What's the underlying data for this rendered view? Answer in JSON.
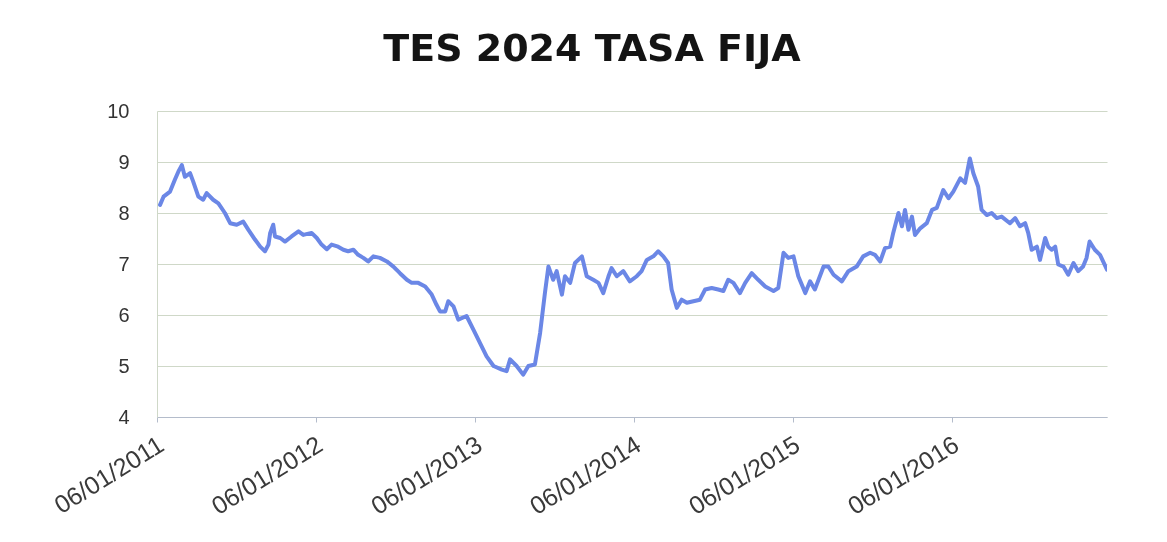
{
  "chart_data": {
    "type": "line",
    "title": "TES 2024 TASA FIJA",
    "x": [
      "2011-01-13",
      "2011-01-21",
      "2011-02-05",
      "2011-02-16",
      "2011-02-24",
      "2011-03-04",
      "2011-03-11",
      "2011-03-23",
      "2011-03-30",
      "2011-04-11",
      "2011-04-22",
      "2011-04-30",
      "2011-05-15",
      "2011-05-27",
      "2011-06-11",
      "2011-06-23",
      "2011-07-08",
      "2011-07-23",
      "2011-08-04",
      "2011-08-19",
      "2011-08-31",
      "2011-09-11",
      "2011-09-19",
      "2011-09-23",
      "2011-09-30",
      "2011-10-04",
      "2011-10-16",
      "2011-10-27",
      "2011-11-11",
      "2011-11-27",
      "2011-12-08",
      "2011-12-27",
      "2012-01-08",
      "2012-01-19",
      "2012-01-31",
      "2012-02-11",
      "2012-02-26",
      "2012-03-09",
      "2012-03-20",
      "2012-04-01",
      "2012-04-12",
      "2012-04-24",
      "2012-05-05",
      "2012-05-17",
      "2012-06-01",
      "2012-06-17",
      "2012-07-02",
      "2012-07-17",
      "2012-08-02",
      "2012-08-13",
      "2012-08-28",
      "2012-09-13",
      "2012-09-28",
      "2012-10-09",
      "2012-10-17",
      "2012-10-29",
      "2012-11-05",
      "2012-11-17",
      "2012-11-28",
      "2012-12-17",
      "2013-01-02",
      "2013-01-17",
      "2013-02-01",
      "2013-02-17",
      "2013-03-08",
      "2013-03-19",
      "2013-03-27",
      "2013-04-11",
      "2013-04-26",
      "2013-05-08",
      "2013-05-23",
      "2013-06-04",
      "2013-06-15",
      "2013-06-23",
      "2013-07-04",
      "2013-07-12",
      "2013-07-24",
      "2013-07-31",
      "2013-08-12",
      "2013-08-23",
      "2013-09-08",
      "2013-09-19",
      "2013-10-04",
      "2013-10-16",
      "2013-10-27",
      "2013-11-08",
      "2013-11-15",
      "2013-11-27",
      "2013-12-12",
      "2013-12-27",
      "2014-01-12",
      "2014-01-23",
      "2014-02-04",
      "2014-02-19",
      "2014-03-02",
      "2014-03-14",
      "2014-03-25",
      "2014-04-02",
      "2014-04-14",
      "2014-04-25",
      "2014-05-07",
      "2014-05-22",
      "2014-06-06",
      "2014-06-18",
      "2014-07-03",
      "2014-07-18",
      "2014-07-30",
      "2014-08-10",
      "2014-08-22",
      "2014-09-06",
      "2014-09-18",
      "2014-10-03",
      "2014-10-18",
      "2014-11-03",
      "2014-11-22",
      "2014-12-03",
      "2014-12-15",
      "2014-12-26",
      "2015-01-07",
      "2015-01-18",
      "2015-02-03",
      "2015-02-14",
      "2015-02-25",
      "2015-03-17",
      "2015-03-28",
      "2015-04-09",
      "2015-04-28",
      "2015-05-13",
      "2015-06-01",
      "2015-06-16",
      "2015-07-02",
      "2015-07-13",
      "2015-07-25",
      "2015-08-05",
      "2015-08-17",
      "2015-08-24",
      "2015-09-05",
      "2015-09-13",
      "2015-09-20",
      "2015-09-28",
      "2015-10-06",
      "2015-10-13",
      "2015-10-25",
      "2015-11-09",
      "2015-11-21",
      "2015-12-02",
      "2015-12-17",
      "2015-12-29",
      "2016-01-09",
      "2016-01-25",
      "2016-02-05",
      "2016-02-16",
      "2016-02-24",
      "2016-03-06",
      "2016-03-14",
      "2016-03-26",
      "2016-04-06",
      "2016-04-18",
      "2016-04-29",
      "2016-05-18",
      "2016-05-30",
      "2016-06-10",
      "2016-06-22",
      "2016-06-29",
      "2016-07-07",
      "2016-07-19",
      "2016-07-26",
      "2016-08-07",
      "2016-08-14",
      "2016-08-22",
      "2016-08-30",
      "2016-09-06",
      "2016-09-18",
      "2016-09-29",
      "2016-10-11",
      "2016-10-22",
      "2016-11-02",
      "2016-11-10",
      "2016-11-17",
      "2016-11-29",
      "2016-12-11",
      "2016-12-27"
    ],
    "series": [
      {
        "color": "#6b87e6",
        "values": [
          8.16,
          8.32,
          8.42,
          8.65,
          8.81,
          8.94,
          8.71,
          8.78,
          8.62,
          8.32,
          8.26,
          8.39,
          8.26,
          8.19,
          8.0,
          7.8,
          7.77,
          7.83,
          7.67,
          7.48,
          7.34,
          7.25,
          7.38,
          7.61,
          7.77,
          7.54,
          7.51,
          7.44,
          7.54,
          7.64,
          7.57,
          7.61,
          7.51,
          7.38,
          7.29,
          7.38,
          7.34,
          7.28,
          7.25,
          7.28,
          7.18,
          7.12,
          7.05,
          7.15,
          7.12,
          7.05,
          6.95,
          6.82,
          6.69,
          6.63,
          6.63,
          6.56,
          6.4,
          6.2,
          6.07,
          6.07,
          6.27,
          6.17,
          5.91,
          5.98,
          5.71,
          5.45,
          5.19,
          5.0,
          4.93,
          4.9,
          5.13,
          5.0,
          4.83,
          5.0,
          5.03,
          5.65,
          6.43,
          6.95,
          6.69,
          6.86,
          6.4,
          6.76,
          6.63,
          7.02,
          7.15,
          6.76,
          6.69,
          6.63,
          6.43,
          6.76,
          6.92,
          6.76,
          6.86,
          6.66,
          6.76,
          6.86,
          7.08,
          7.15,
          7.25,
          7.15,
          7.02,
          6.5,
          6.14,
          6.3,
          6.24,
          6.27,
          6.3,
          6.5,
          6.53,
          6.5,
          6.47,
          6.69,
          6.63,
          6.43,
          6.63,
          6.82,
          6.69,
          6.56,
          6.47,
          6.53,
          7.22,
          7.12,
          7.15,
          6.76,
          6.43,
          6.66,
          6.5,
          6.95,
          6.95,
          6.79,
          6.66,
          6.86,
          6.95,
          7.15,
          7.22,
          7.18,
          7.05,
          7.31,
          7.34,
          7.61,
          8.0,
          7.74,
          8.06,
          7.67,
          7.93,
          7.57,
          7.7,
          7.8,
          8.06,
          8.1,
          8.45,
          8.29,
          8.42,
          8.68,
          8.59,
          9.07,
          8.78,
          8.52,
          8.06,
          7.96,
          8.0,
          7.9,
          7.93,
          7.8,
          7.9,
          7.74,
          7.8,
          7.61,
          7.28,
          7.34,
          7.08,
          7.51,
          7.34,
          7.28,
          7.34,
          6.99,
          6.95,
          6.79,
          7.02,
          6.86,
          6.95,
          7.12,
          7.44,
          7.28,
          7.18,
          6.89
        ]
      }
    ],
    "xlim": [
      "2011-01-06",
      "2016-12-27"
    ],
    "xticks": [
      {
        "value": "2011-01-06",
        "label": "06/01/2011"
      },
      {
        "value": "2012-01-06",
        "label": "06/01/2012"
      },
      {
        "value": "2013-01-06",
        "label": "06/01/2013"
      },
      {
        "value": "2014-01-06",
        "label": "06/01/2014"
      },
      {
        "value": "2015-01-06",
        "label": "06/01/2015"
      },
      {
        "value": "2016-01-06",
        "label": "06/01/2016"
      }
    ],
    "ylim": [
      4,
      10
    ],
    "yticks": [
      4,
      5,
      6,
      7,
      8,
      9,
      10
    ],
    "grid": "y",
    "legend": false,
    "marker": "none",
    "line_style": "solid"
  }
}
